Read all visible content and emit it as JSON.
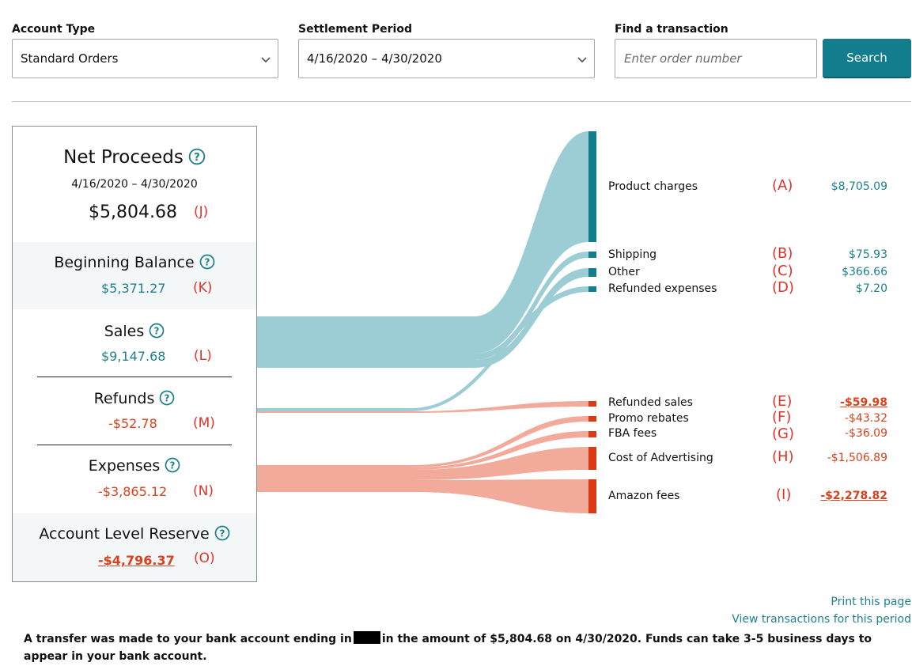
{
  "filters": {
    "account_type": {
      "label": "Account Type",
      "value": "Standard Orders"
    },
    "settlement_period": {
      "label": "Settlement Period",
      "value": "4/16/2020 – 4/30/2020"
    },
    "find": {
      "label": "Find a transaction",
      "placeholder": "Enter order number",
      "button": "Search"
    }
  },
  "summary": {
    "net": {
      "title": "Net Proceeds",
      "period": "4/16/2020 – 4/30/2020",
      "amount": "$5,804.68",
      "ref": "(J)"
    },
    "beginning": {
      "title": "Beginning Balance",
      "amount": "$5,371.27",
      "ref": "(K)"
    },
    "sales": {
      "title": "Sales",
      "amount": "$9,147.68",
      "ref": "(L)"
    },
    "refunds": {
      "title": "Refunds",
      "amount": "-$52.78",
      "ref": "(M)"
    },
    "expenses": {
      "title": "Expenses",
      "amount": "-$3,865.12",
      "ref": "(N)"
    },
    "reserve": {
      "title": "Account Level Reserve",
      "amount": "-$4,796.37",
      "ref": "(O)"
    }
  },
  "breakdown": [
    {
      "label": "Product charges",
      "ref": "(A)",
      "value": "$8,705.09"
    },
    {
      "label": "Shipping",
      "ref": "(B)",
      "value": "$75.93"
    },
    {
      "label": "Other",
      "ref": "(C)",
      "value": "$366.66"
    },
    {
      "label": "Refunded expenses",
      "ref": "(D)",
      "value": "$7.20"
    },
    {
      "label": "Refunded sales",
      "ref": "(E)",
      "value": "-$59.98"
    },
    {
      "label": "Promo rebates",
      "ref": "(F)",
      "value": "-$43.32"
    },
    {
      "label": "FBA fees",
      "ref": "(G)",
      "value": "-$36.09"
    },
    {
      "label": "Cost of Advertising",
      "ref": "(H)",
      "value": "-$1,506.89"
    },
    {
      "label": "Amazon fees",
      "ref": "(I)",
      "value": "-$2,278.82"
    }
  ],
  "colors": {
    "positive_flow": "#9ccdd5",
    "positive_bar": "#137c8d",
    "negative_flow": "#f2ab9a",
    "negative_bar": "#dc3a12",
    "link": "#1e7f8e"
  },
  "links": {
    "print": "Print this page",
    "view": "View transactions for this period"
  },
  "transfer_note": {
    "before": "A transfer was made to your bank account ending in",
    "after": "in the amount of $5,804.68 on 4/30/2020. Funds can take 3-5 business days to appear in your bank account."
  }
}
